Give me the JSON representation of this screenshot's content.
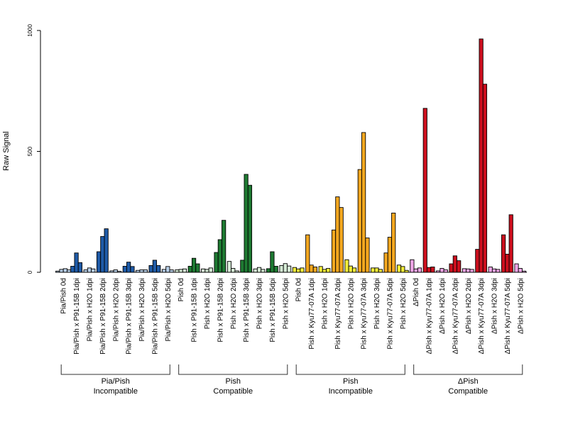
{
  "chart_data": {
    "type": "bar",
    "ylabel": "Raw Signal",
    "ylim": [
      0,
      1000
    ],
    "yticks": [
      {
        "value": 0,
        "label": "0"
      },
      {
        "value": 500,
        "label": "500"
      },
      {
        "value": 1000,
        "label": "1000"
      }
    ],
    "bar_groups": [
      {
        "label": "Pia/Pish 0d",
        "color": "#b8cfe8",
        "values": [
          5,
          12,
          15,
          10
        ]
      },
      {
        "label": "Pia/Pish x P91-15B 1dpi",
        "color": "#1f5ba8",
        "values": [
          25,
          80,
          40
        ]
      },
      {
        "label": "Pia/Pish x H2O 1dpi",
        "color": "#b8cfe8",
        "values": [
          10,
          18,
          14
        ]
      },
      {
        "label": "Pia/Pish x P91-15B 2dpi",
        "color": "#1f5ba8",
        "values": [
          85,
          148,
          180
        ]
      },
      {
        "label": "Pia/Pish x H2O 2dpi",
        "color": "#b8cfe8",
        "values": [
          6,
          10,
          4
        ]
      },
      {
        "label": "Pia/Pish x P91-15B 3dpi",
        "color": "#1f5ba8",
        "values": [
          25,
          42,
          24
        ]
      },
      {
        "label": "Pia/Pish x H2O 3dpi",
        "color": "#b8cfe8",
        "values": [
          8,
          10,
          10
        ]
      },
      {
        "label": "Pia/Pish x P91-15B 5dpi",
        "color": "#1f5ba8",
        "values": [
          28,
          50,
          28
        ]
      },
      {
        "label": "Pia/Pish x H2O 5dpi",
        "color": "#b8cfe8",
        "values": [
          12,
          24,
          10
        ]
      },
      {
        "label": "Pish 0d",
        "color": "#d5ead5",
        "values": [
          10,
          12,
          14
        ]
      },
      {
        "label": "Pish x P91-15B 1dpi",
        "color": "#1e7a32",
        "values": [
          25,
          58,
          35
        ]
      },
      {
        "label": "Pish x H2O 1dpi",
        "color": "#d5ead5",
        "values": [
          14,
          12,
          18
        ]
      },
      {
        "label": "Pish x P91-15B 2dpi",
        "color": "#1e7a32",
        "values": [
          82,
          135,
          215
        ]
      },
      {
        "label": "Pish x H2O 2dpi",
        "color": "#d5ead5",
        "values": [
          45,
          16,
          6
        ]
      },
      {
        "label": "Pish x P91-15B 3dpi",
        "color": "#1e7a32",
        "values": [
          50,
          405,
          360
        ]
      },
      {
        "label": "Pish x H2O 3dpi",
        "color": "#d5ead5",
        "values": [
          14,
          20,
          12
        ]
      },
      {
        "label": "Pish x P91-15B 5dpi",
        "color": "#1e7a32",
        "values": [
          15,
          85,
          25
        ]
      },
      {
        "label": "Pish x H2O 5dpi",
        "color": "#d5ead5",
        "values": [
          28,
          36,
          26
        ]
      },
      {
        "label": "Pish 0d",
        "color": "#f3ee3a",
        "values": [
          20,
          14,
          18
        ]
      },
      {
        "label": "Pish x Kyu77-07A 1dpi",
        "color": "#f5a81f",
        "values": [
          155,
          30,
          22
        ]
      },
      {
        "label": "Pish x H2O 1dpi",
        "color": "#f3ee3a",
        "values": [
          24,
          12,
          16
        ]
      },
      {
        "label": "Pish x Kyu77-07A 2dpi",
        "color": "#f5a81f",
        "values": [
          175,
          312,
          268
        ]
      },
      {
        "label": "Pish x H2O 2dpi",
        "color": "#f3ee3a",
        "values": [
          52,
          26,
          18
        ]
      },
      {
        "label": "Pish x Kyu77-07A 3dpi",
        "color": "#f5a81f",
        "values": [
          425,
          578,
          142
        ]
      },
      {
        "label": "Pish x H2O 3dpi",
        "color": "#f3ee3a",
        "values": [
          18,
          18,
          12
        ]
      },
      {
        "label": "Pish x Kyu77-07A 5dpi",
        "color": "#f5a81f",
        "values": [
          80,
          145,
          245
        ]
      },
      {
        "label": "Pish x H2O 5dpi",
        "color": "#f3ee3a",
        "values": [
          30,
          24,
          8
        ]
      },
      {
        "label": "ΔPish 0d",
        "color": "#f0a6e8",
        "values": [
          52,
          14,
          18
        ]
      },
      {
        "label": "ΔPish x Kyu77-07A 1dpi",
        "color": "#cc0f1e",
        "values": [
          678,
          20,
          22
        ]
      },
      {
        "label": "ΔPish x H2O 1dpi",
        "color": "#f0a6e8",
        "values": [
          6,
          16,
          10
        ]
      },
      {
        "label": "ΔPish x Kyu77-07A 2dpi",
        "color": "#cc0f1e",
        "values": [
          35,
          68,
          48
        ]
      },
      {
        "label": "ΔPish x H2O 2dpi",
        "color": "#f0a6e8",
        "values": [
          15,
          14,
          12
        ]
      },
      {
        "label": "ΔPish x Kyu77-07A 3dpi",
        "color": "#cc0f1e",
        "values": [
          95,
          965,
          778
        ]
      },
      {
        "label": "ΔPish x H2O 3dpi",
        "color": "#f0a6e8",
        "values": [
          22,
          14,
          12
        ]
      },
      {
        "label": "ΔPish x Kyu77-07A 5dpi",
        "color": "#cc0f1e",
        "values": [
          155,
          75,
          238
        ]
      },
      {
        "label": "ΔPish x H2O 5dpi",
        "color": "#f0a6e8",
        "values": [
          35,
          16,
          5
        ]
      }
    ],
    "groups": [
      {
        "line1": "Pia/Pish",
        "line2": "Incompatible",
        "start": 0,
        "end": 8
      },
      {
        "line1": "Pish",
        "line2": "Compatible",
        "start": 9,
        "end": 17
      },
      {
        "line1": "Pish",
        "line2": "Incompatible",
        "start": 18,
        "end": 26
      },
      {
        "line1": "ΔPish",
        "line2": "Compatible",
        "start": 27,
        "end": 35
      }
    ]
  }
}
